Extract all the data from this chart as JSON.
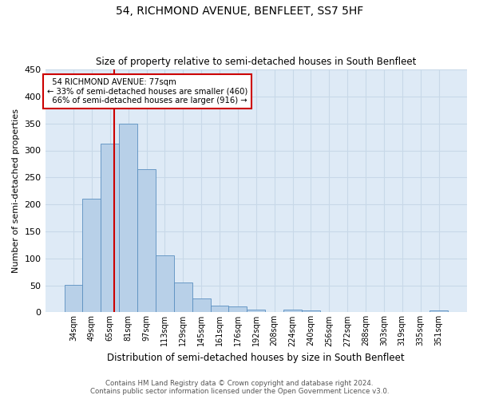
{
  "title": "54, RICHMOND AVENUE, BENFLEET, SS7 5HF",
  "subtitle": "Size of property relative to semi-detached houses in South Benfleet",
  "bar_labels": [
    "34sqm",
    "49sqm",
    "65sqm",
    "81sqm",
    "97sqm",
    "113sqm",
    "129sqm",
    "145sqm",
    "161sqm",
    "176sqm",
    "192sqm",
    "208sqm",
    "224sqm",
    "240sqm",
    "256sqm",
    "272sqm",
    "288sqm",
    "303sqm",
    "319sqm",
    "335sqm",
    "351sqm"
  ],
  "bar_values": [
    51,
    210,
    313,
    350,
    265,
    105,
    55,
    26,
    12,
    11,
    5,
    0,
    5,
    4,
    0,
    0,
    0,
    0,
    0,
    0,
    4
  ],
  "bar_color": "#b8d0e8",
  "bar_edge_color": "#5a8fc0",
  "ylabel": "Number of semi-detached properties",
  "xlabel": "Distribution of semi-detached houses by size in South Benfleet",
  "ylim": [
    0,
    450
  ],
  "property_label": "54 RICHMOND AVENUE: 77sqm",
  "pct_smaller": 33,
  "pct_larger": 66,
  "count_smaller": 460,
  "count_larger": 916,
  "annotation_box_color": "#ffffff",
  "annotation_box_edge": "#cc0000",
  "vline_color": "#cc0000",
  "grid_color": "#c8d8e8",
  "bg_color": "#deeaf6",
  "footer_line1": "Contains HM Land Registry data © Crown copyright and database right 2024.",
  "footer_line2": "Contains public sector information licensed under the Open Government Licence v3.0."
}
